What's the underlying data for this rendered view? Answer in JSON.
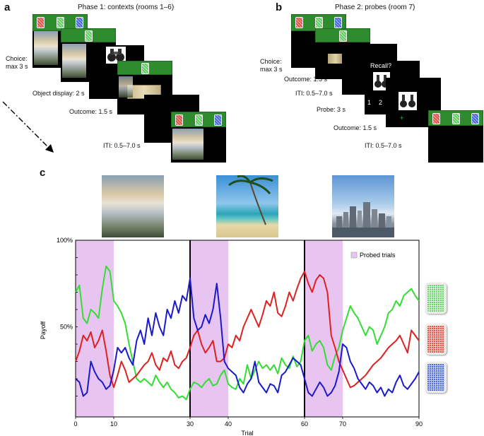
{
  "panel_a": {
    "letter": "a",
    "title": "Phase 1: contexts (rooms 1–6)",
    "steps": {
      "choice_line1": "Choice:",
      "choice_line2": "max 3 s",
      "object_display": "Object display: 2 s",
      "outcome": "Outcome: 1.5 s",
      "iti": "ITI: 0.5–7.0 s"
    }
  },
  "panel_b": {
    "letter": "b",
    "title": "Phase 2: probes (room 7)",
    "steps": {
      "choice_line1": "Choice:",
      "choice_line2": "max 3 s",
      "outcome": "Outcome: 1.5 s",
      "iti": "ITI: 0.5–7.0 s",
      "probe": "Probe: 3 s",
      "outcome2": "Outcome: 1.5 s",
      "iti2": "ITI: 0.5–7.0 s"
    },
    "recall_text": "Recall?",
    "option_1": "1",
    "option_2": "2",
    "plus": "+"
  },
  "panel_c": {
    "letter": "c",
    "legend_label": "Probed trials",
    "colors": {
      "red": "#e02020",
      "green": "#33dd33",
      "blue": "#1a1acc",
      "probe": "#e8c4f0"
    },
    "context_images": [
      "misty-mountain-photo",
      "tropical-beach-photo",
      "city-skyline-photo"
    ]
  },
  "chart_data": {
    "type": "line",
    "xlabel": "Trial",
    "ylabel": "Payoff",
    "xlim": [
      0,
      90
    ],
    "ylim": [
      0,
      100
    ],
    "x_ticks": [
      "0",
      "10",
      "30",
      "40",
      "60",
      "70",
      "90"
    ],
    "x_tick_values": [
      0,
      10,
      30,
      40,
      60,
      70,
      90
    ],
    "y_ticks": [
      "50%",
      "100%"
    ],
    "y_tick_values": [
      50,
      100
    ],
    "context_boundaries": [
      30,
      60
    ],
    "probed_ranges": [
      [
        0,
        10
      ],
      [
        30,
        40
      ],
      [
        60,
        70
      ]
    ],
    "legend": "top-right",
    "series": [
      {
        "color": "green",
        "values": [
          70,
          74,
          55,
          52,
          60,
          58,
          55,
          72,
          85,
          82,
          65,
          62,
          58,
          52,
          40,
          30,
          20,
          18,
          20,
          18,
          16,
          22,
          18,
          15,
          18,
          14,
          12,
          9,
          10,
          8,
          14,
          18,
          17,
          15,
          18,
          20,
          16,
          17,
          22,
          25,
          17,
          15,
          14,
          20,
          17,
          28,
          20,
          25,
          30,
          26,
          28,
          25,
          28,
          23,
          32,
          28,
          26,
          33,
          27,
          30,
          42,
          45,
          36,
          40,
          42,
          38,
          28,
          25,
          33,
          38,
          48,
          55,
          62,
          58,
          55,
          50,
          45,
          50,
          48,
          40,
          45,
          50,
          58,
          60,
          65,
          62,
          68,
          70,
          72,
          68,
          65
        ]
      },
      {
        "color": "red",
        "values": [
          30,
          36,
          45,
          42,
          47,
          38,
          42,
          48,
          36,
          22,
          15,
          22,
          30,
          25,
          18,
          20,
          22,
          25,
          28,
          30,
          35,
          28,
          25,
          32,
          30,
          36,
          28,
          26,
          30,
          32,
          38,
          45,
          48,
          40,
          35,
          38,
          42,
          30,
          30,
          32,
          40,
          38,
          45,
          42,
          50,
          55,
          60,
          55,
          50,
          57,
          65,
          62,
          70,
          58,
          56,
          62,
          70,
          65,
          72,
          78,
          82,
          75,
          70,
          77,
          80,
          78,
          70,
          45,
          38,
          30,
          25,
          20,
          15,
          16,
          18,
          20,
          22,
          25,
          28,
          30,
          32,
          35,
          38,
          40,
          42,
          45,
          40,
          35,
          48,
          45,
          42
        ]
      },
      {
        "color": "blue",
        "values": [
          20,
          18,
          10,
          12,
          30,
          24,
          20,
          18,
          14,
          16,
          25,
          38,
          35,
          38,
          32,
          28,
          42,
          48,
          40,
          55,
          45,
          58,
          50,
          45,
          60,
          55,
          65,
          58,
          68,
          65,
          78,
          55,
          48,
          50,
          57,
          52,
          60,
          75,
          55,
          30,
          26,
          24,
          22,
          15,
          12,
          17,
          20,
          30,
          18,
          15,
          12,
          17,
          16,
          12,
          22,
          24,
          28,
          32,
          30,
          28,
          20,
          12,
          10,
          14,
          18,
          15,
          10,
          12,
          16,
          24,
          40,
          38,
          30,
          26,
          20,
          17,
          14,
          18,
          16,
          12,
          15,
          10,
          14,
          12,
          18,
          22,
          16,
          14,
          17,
          20,
          24
        ]
      }
    ]
  }
}
